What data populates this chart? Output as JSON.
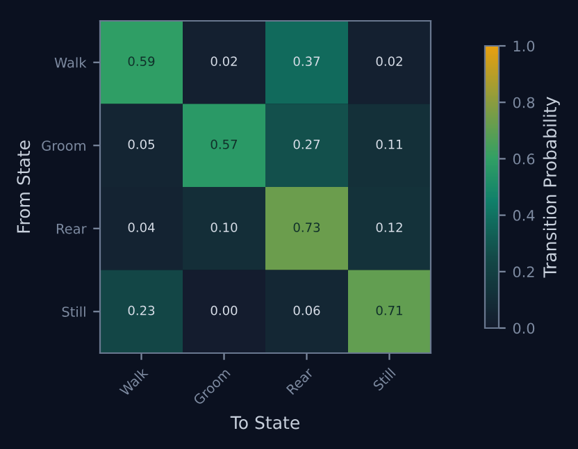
{
  "chart_data": {
    "type": "heatmap",
    "xlabel": "To State",
    "ylabel": "From State",
    "clabel": "Transition Probability",
    "categories": [
      "Walk",
      "Groom",
      "Rear",
      "Still"
    ],
    "y_categories": [
      "Walk",
      "Groom",
      "Rear",
      "Still"
    ],
    "cells": [
      [
        0.59,
        0.02,
        0.37,
        0.02
      ],
      [
        0.05,
        0.57,
        0.27,
        0.11
      ],
      [
        0.04,
        0.1,
        0.73,
        0.12
      ],
      [
        0.23,
        0.0,
        0.06,
        0.71
      ]
    ],
    "cell_labels": [
      [
        "0.59",
        "0.02",
        "0.37",
        "0.02"
      ],
      [
        "0.05",
        "0.57",
        "0.27",
        "0.11"
      ],
      [
        "0.04",
        "0.10",
        "0.73",
        "0.12"
      ],
      [
        "0.23",
        "0.00",
        "0.06",
        "0.71"
      ]
    ],
    "clim": [
      0.0,
      1.0
    ],
    "cticks": [
      {
        "value": 0.0,
        "label": "0.0"
      },
      {
        "value": 0.2,
        "label": "0.2"
      },
      {
        "value": 0.4,
        "label": "0.4"
      },
      {
        "value": 0.6,
        "label": "0.6"
      },
      {
        "value": 0.8,
        "label": "0.8"
      },
      {
        "value": 1.0,
        "label": "1.0"
      }
    ]
  }
}
